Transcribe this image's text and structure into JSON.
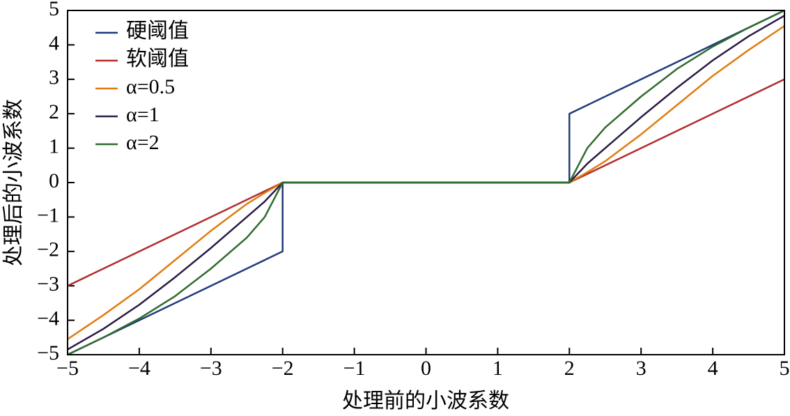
{
  "chart_data": {
    "type": "line",
    "xlabel": "处理前的小波系数",
    "ylabel": "处理后的小波系数",
    "xlim": [
      -5,
      5
    ],
    "ylim": [
      -5,
      5
    ],
    "xticks": [
      {
        "value": -5,
        "label": "−5"
      },
      {
        "value": -4,
        "label": "−4"
      },
      {
        "value": -3,
        "label": "−3"
      },
      {
        "value": -2,
        "label": "−2"
      },
      {
        "value": -1,
        "label": "−1"
      },
      0,
      1,
      2,
      3,
      4,
      5
    ],
    "yticks": [
      {
        "value": -5,
        "label": "−5"
      },
      {
        "value": -4,
        "label": "−4"
      },
      {
        "value": -3,
        "label": "−3"
      },
      {
        "value": -2,
        "label": "−2"
      },
      {
        "value": -1,
        "label": "−1"
      },
      0,
      1,
      2,
      3,
      4,
      5
    ],
    "legend": "upper left",
    "series": [
      {
        "name": "硬阈值",
        "color": "#1f3a7a",
        "x": [
          -5,
          -2,
          -2,
          2,
          2,
          5
        ],
        "values": [
          -5,
          -2,
          0,
          0,
          2,
          5
        ]
      },
      {
        "name": "软阈值",
        "color": "#b22a2a",
        "x": [
          -5,
          -2,
          2,
          5
        ],
        "values": [
          -3,
          0,
          0,
          3
        ]
      },
      {
        "name": "α=0.5",
        "color": "#e07b10",
        "x": [
          -5,
          -4.5,
          -4,
          -3.5,
          -3,
          -2.5,
          -2.25,
          -2,
          2,
          2.25,
          2.5,
          3,
          3.5,
          4,
          4.5,
          5
        ],
        "values": [
          -4.55,
          -3.85,
          -3.1,
          -2.25,
          -1.4,
          -0.62,
          -0.3,
          0,
          0,
          0.3,
          0.62,
          1.4,
          2.25,
          3.1,
          3.85,
          4.55
        ]
      },
      {
        "name": "α=1",
        "color": "#2a1a45",
        "x": [
          -5,
          -4.5,
          -4,
          -3.5,
          -3,
          -2.5,
          -2.25,
          -2,
          2,
          2.25,
          2.5,
          3,
          3.5,
          4,
          4.5,
          5
        ],
        "values": [
          -4.85,
          -4.25,
          -3.55,
          -2.75,
          -1.9,
          -1.0,
          -0.55,
          0,
          0,
          0.55,
          1.0,
          1.9,
          2.75,
          3.55,
          4.25,
          4.85
        ]
      },
      {
        "name": "α=2",
        "color": "#2e6b2e",
        "x": [
          -5,
          -4.5,
          -4,
          -3.5,
          -3,
          -2.5,
          -2.25,
          -2,
          2,
          2.25,
          2.5,
          3,
          3.5,
          4,
          4.5,
          5
        ],
        "values": [
          -5.0,
          -4.5,
          -3.95,
          -3.3,
          -2.5,
          -1.6,
          -1.0,
          0,
          0,
          1.0,
          1.6,
          2.5,
          3.3,
          3.95,
          4.5,
          5.0
        ]
      }
    ]
  }
}
